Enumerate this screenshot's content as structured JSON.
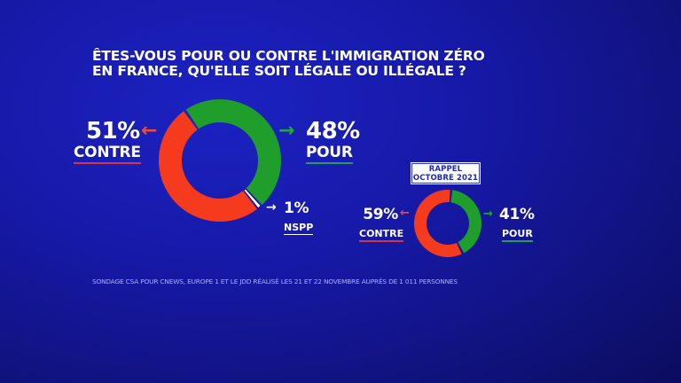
{
  "title": {
    "line1": "Êtes-vous pour ou contre l'immigration zéro",
    "line2": "en France, qu'elle soit légale ou illégale ?"
  },
  "colors": {
    "contre": "#f53a1e",
    "pour": "#1f9e2c",
    "nspp": "#ffffff",
    "background": "#1619a6"
  },
  "chart_data": [
    {
      "type": "pie",
      "variant": "donut",
      "title": "Êtes-vous pour ou contre l'immigration zéro en France, qu'elle soit légale ou illégale ?",
      "categories": [
        "Pour",
        "NSPP",
        "Contre"
      ],
      "values": [
        48,
        1,
        51
      ],
      "labels": {
        "contre_pct": "51%",
        "contre_word": "CONTRE",
        "pour_pct": "48%",
        "pour_word": "POUR",
        "nspp_pct": "1%",
        "nspp_word": "NSPP"
      },
      "unit": "%"
    },
    {
      "type": "pie",
      "variant": "donut",
      "title": "RAPPEL OCTOBRE 2021",
      "title_lines": [
        "RAPPEL",
        "OCTOBRE 2021"
      ],
      "categories": [
        "Pour",
        "Contre"
      ],
      "values": [
        41,
        59
      ],
      "labels": {
        "contre_pct": "59%",
        "contre_word": "CONTRE",
        "pour_pct": "41%",
        "pour_word": "POUR"
      },
      "unit": "%"
    }
  ],
  "source": "Sondage CSA pour CNEWS, Europe 1 et le JDD réalisé les 21 et 22 novembre auprès de 1 011 personnes",
  "icons": {
    "arrow_left": "←",
    "arrow_right": "→"
  }
}
